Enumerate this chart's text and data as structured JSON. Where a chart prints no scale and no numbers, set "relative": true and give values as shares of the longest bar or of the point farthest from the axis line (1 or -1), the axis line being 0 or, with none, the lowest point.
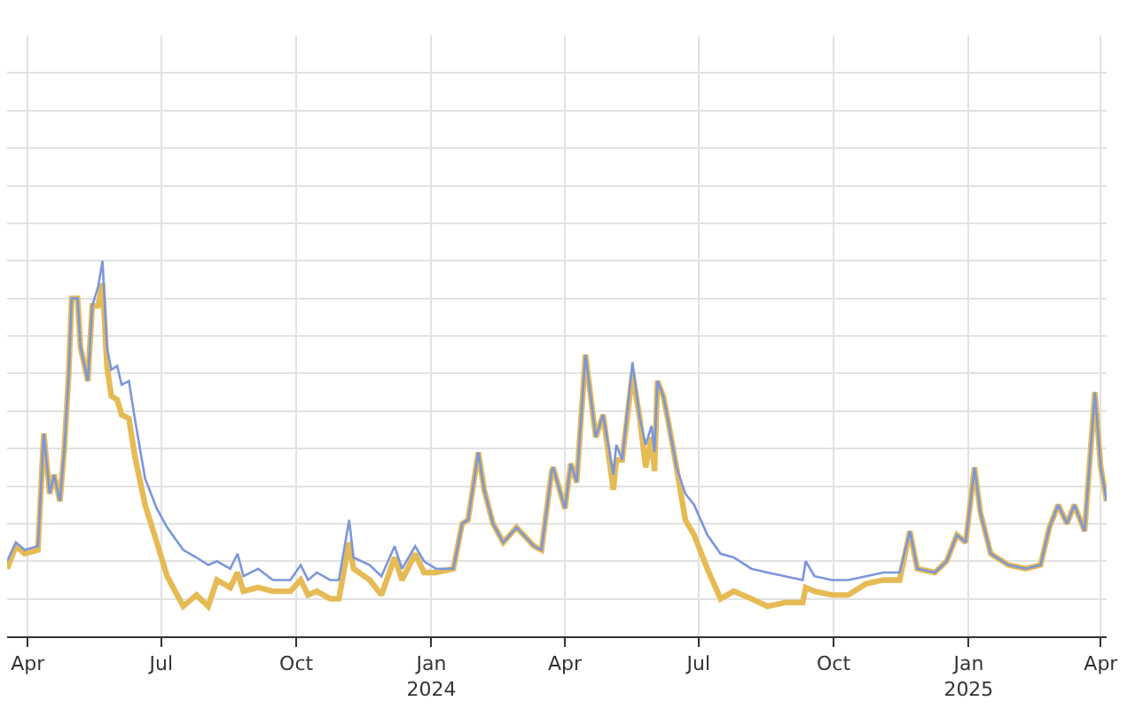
{
  "chart_data": {
    "type": "line",
    "relative": true,
    "grid": true,
    "marker": "none",
    "line_style": "solid",
    "xlim": [
      "2023-03-18",
      "2025-04-05"
    ],
    "xticks": [
      {
        "value": "2023-04-01",
        "label": "Apr"
      },
      {
        "value": "2023-07-01",
        "label": "Jul"
      },
      {
        "value": "2023-10-01",
        "label": "Oct"
      },
      {
        "value": "2024-01-01",
        "label": "Jan\n2024"
      },
      {
        "value": "2024-04-01",
        "label": "Apr"
      },
      {
        "value": "2024-07-01",
        "label": "Jul"
      },
      {
        "value": "2024-10-01",
        "label": "Oct"
      },
      {
        "value": "2025-01-01",
        "label": "Jan\n2025"
      },
      {
        "value": "2025-04-01",
        "label": "Apr"
      }
    ],
    "x": [
      "2023-03-18",
      "2023-03-24",
      "2023-03-30",
      "2023-04-08",
      "2023-04-12",
      "2023-04-16",
      "2023-04-19",
      "2023-04-23",
      "2023-04-26",
      "2023-04-29",
      "2023-05-01",
      "2023-05-05",
      "2023-05-07",
      "2023-05-12",
      "2023-05-15",
      "2023-05-19",
      "2023-05-22",
      "2023-05-25",
      "2023-05-28",
      "2023-06-01",
      "2023-06-04",
      "2023-06-09",
      "2023-06-13",
      "2023-06-20",
      "2023-06-28",
      "2023-07-05",
      "2023-07-16",
      "2023-07-25",
      "2023-08-02",
      "2023-08-08",
      "2023-08-17",
      "2023-08-22",
      "2023-08-26",
      "2023-09-05",
      "2023-09-15",
      "2023-09-27",
      "2023-10-04",
      "2023-10-09",
      "2023-10-15",
      "2023-10-24",
      "2023-10-30",
      "2023-11-06",
      "2023-11-09",
      "2023-11-20",
      "2023-11-28",
      "2023-12-07",
      "2023-12-12",
      "2023-12-21",
      "2023-12-27",
      "2024-01-04",
      "2024-01-16",
      "2024-01-22",
      "2024-01-26",
      "2024-02-02",
      "2024-02-06",
      "2024-02-12",
      "2024-02-19",
      "2024-02-28",
      "2024-03-11",
      "2024-03-16",
      "2024-03-23",
      "2024-03-24",
      "2024-04-01",
      "2024-04-05",
      "2024-04-09",
      "2024-04-15",
      "2024-04-22",
      "2024-04-27",
      "2024-05-04",
      "2024-05-06",
      "2024-05-10",
      "2024-05-17",
      "2024-05-22",
      "2024-05-26",
      "2024-05-30",
      "2024-06-01",
      "2024-06-03",
      "2024-06-07",
      "2024-06-10",
      "2024-06-16",
      "2024-06-22",
      "2024-06-28",
      "2024-07-07",
      "2024-07-16",
      "2024-07-25",
      "2024-08-06",
      "2024-08-17",
      "2024-08-29",
      "2024-09-10",
      "2024-09-12",
      "2024-09-18",
      "2024-09-30",
      "2024-10-11",
      "2024-10-23",
      "2024-11-04",
      "2024-11-15",
      "2024-11-22",
      "2024-11-27",
      "2024-12-09",
      "2024-12-17",
      "2024-12-24",
      "2024-12-30",
      "2025-01-05",
      "2025-01-09",
      "2025-01-16",
      "2025-01-28",
      "2025-02-09",
      "2025-02-19",
      "2025-02-25",
      "2025-03-03",
      "2025-03-09",
      "2025-03-14",
      "2025-03-21",
      "2025-03-28",
      "2025-04-01",
      "2025-04-05"
    ],
    "series": [
      {
        "color": "#7b96dd",
        "values": [
          0.2,
          0.25,
          0.23,
          0.24,
          0.54,
          0.38,
          0.43,
          0.36,
          0.5,
          0.7,
          0.9,
          0.9,
          0.77,
          0.68,
          0.88,
          0.93,
          1.0,
          0.77,
          0.71,
          0.72,
          0.67,
          0.68,
          0.58,
          0.42,
          0.34,
          0.29,
          0.23,
          0.21,
          0.19,
          0.2,
          0.18,
          0.22,
          0.16,
          0.18,
          0.15,
          0.15,
          0.19,
          0.15,
          0.17,
          0.15,
          0.15,
          0.31,
          0.21,
          0.19,
          0.16,
          0.24,
          0.18,
          0.24,
          0.2,
          0.18,
          0.18,
          0.3,
          0.31,
          0.49,
          0.39,
          0.3,
          0.25,
          0.29,
          0.24,
          0.23,
          0.44,
          0.45,
          0.34,
          0.46,
          0.41,
          0.75,
          0.53,
          0.59,
          0.43,
          0.51,
          0.47,
          0.73,
          0.58,
          0.51,
          0.56,
          0.49,
          0.68,
          0.64,
          0.58,
          0.45,
          0.38,
          0.35,
          0.27,
          0.22,
          0.21,
          0.18,
          0.17,
          0.16,
          0.15,
          0.2,
          0.16,
          0.15,
          0.15,
          0.16,
          0.17,
          0.17,
          0.28,
          0.18,
          0.17,
          0.2,
          0.27,
          0.25,
          0.45,
          0.33,
          0.22,
          0.19,
          0.18,
          0.19,
          0.29,
          0.35,
          0.3,
          0.35,
          0.28,
          0.65,
          0.45,
          0.36
        ]
      },
      {
        "color": "#e6bb55",
        "values": [
          0.18,
          0.24,
          0.22,
          0.23,
          0.54,
          0.38,
          0.43,
          0.36,
          0.5,
          0.7,
          0.9,
          0.9,
          0.77,
          0.68,
          0.88,
          0.88,
          0.94,
          0.72,
          0.64,
          0.63,
          0.59,
          0.58,
          0.48,
          0.35,
          0.25,
          0.16,
          0.08,
          0.11,
          0.08,
          0.15,
          0.13,
          0.17,
          0.12,
          0.13,
          0.12,
          0.12,
          0.15,
          0.11,
          0.12,
          0.1,
          0.1,
          0.25,
          0.18,
          0.15,
          0.11,
          0.21,
          0.15,
          0.22,
          0.17,
          0.17,
          0.18,
          0.3,
          0.31,
          0.49,
          0.39,
          0.3,
          0.25,
          0.29,
          0.24,
          0.23,
          0.44,
          0.45,
          0.34,
          0.46,
          0.41,
          0.75,
          0.53,
          0.59,
          0.39,
          0.47,
          0.47,
          0.7,
          0.58,
          0.45,
          0.53,
          0.44,
          0.68,
          0.64,
          0.58,
          0.45,
          0.31,
          0.27,
          0.18,
          0.1,
          0.12,
          0.1,
          0.08,
          0.09,
          0.09,
          0.13,
          0.12,
          0.11,
          0.11,
          0.14,
          0.15,
          0.15,
          0.28,
          0.18,
          0.17,
          0.2,
          0.27,
          0.25,
          0.45,
          0.33,
          0.22,
          0.19,
          0.18,
          0.19,
          0.29,
          0.35,
          0.3,
          0.35,
          0.28,
          0.65,
          0.45,
          0.36
        ]
      }
    ]
  }
}
